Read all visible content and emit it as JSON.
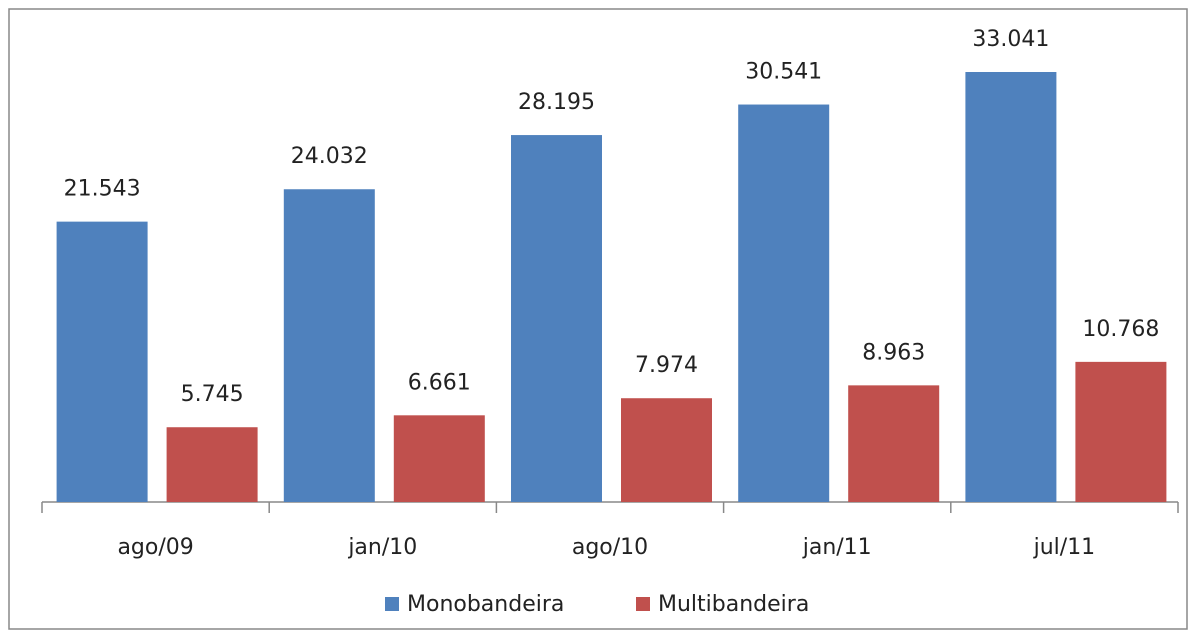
{
  "chart_data": {
    "type": "bar",
    "categories": [
      "ago/09",
      "jan/10",
      "ago/10",
      "jan/11",
      "jul/11"
    ],
    "series": [
      {
        "name": "Monobandeira",
        "color": "#4f81bd",
        "values": [
          21543,
          24032,
          28195,
          30541,
          33041
        ],
        "value_labels": [
          "21.543",
          "24.032",
          "28.195",
          "30.541",
          "33.041"
        ]
      },
      {
        "name": "Multibandeira",
        "color": "#c0504d",
        "values": [
          5745,
          6661,
          7974,
          8963,
          10768
        ],
        "value_labels": [
          "5.745",
          "6.661",
          "7.974",
          "8.963",
          "10.768"
        ]
      }
    ],
    "legend": "bottom"
  }
}
